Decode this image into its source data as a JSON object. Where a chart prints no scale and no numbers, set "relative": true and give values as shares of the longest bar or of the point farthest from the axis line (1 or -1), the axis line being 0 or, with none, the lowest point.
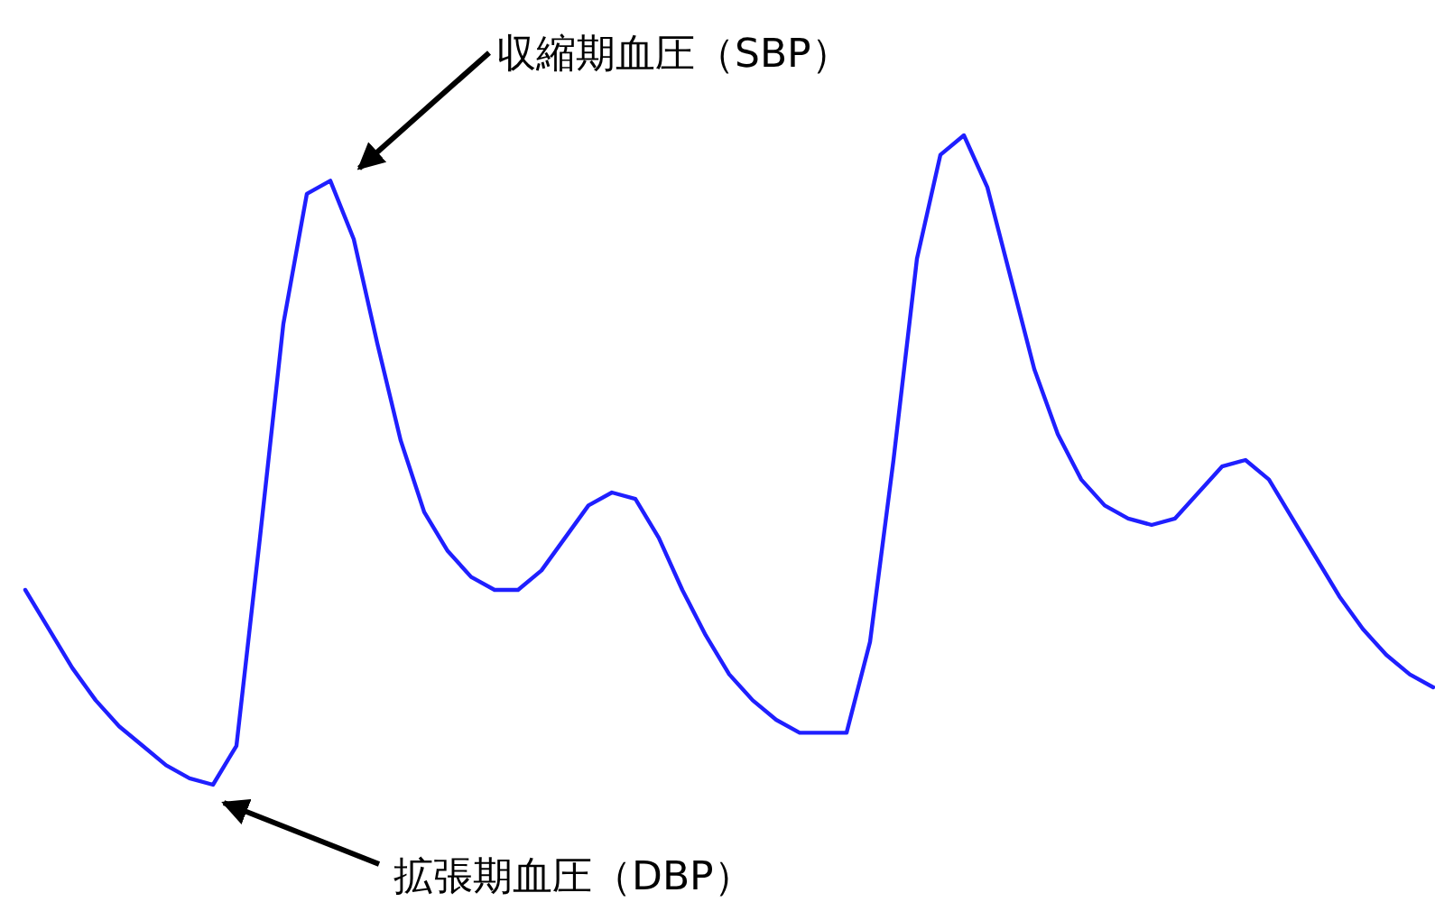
{
  "chart_data": {
    "type": "line",
    "relative": true,
    "color": "#1f1fff",
    "marker": "none",
    "line_style": "solid",
    "grid": false,
    "categories": [
      null,
      null,
      null,
      null,
      null,
      null,
      null,
      null,
      null,
      null,
      null,
      null,
      null,
      null,
      null,
      null,
      null,
      null,
      null,
      null,
      null,
      null,
      null,
      null,
      null,
      null,
      null,
      null,
      null,
      null,
      null,
      null,
      null,
      null,
      null,
      null,
      null,
      null,
      null,
      null,
      null,
      null,
      null,
      null,
      null,
      null,
      null,
      null,
      null,
      null,
      null,
      null,
      null,
      null,
      null,
      null,
      null,
      null,
      null,
      null,
      null
    ],
    "values": [
      0.3,
      0.24,
      0.18,
      0.13,
      0.09,
      0.06,
      0.03,
      0.01,
      0,
      0.06,
      0.38,
      0.71,
      0.91,
      0.93,
      0.84,
      0.68,
      0.53,
      0.42,
      0.36,
      0.32,
      0.3,
      0.3,
      0.33,
      0.38,
      0.43,
      0.45,
      0.44,
      0.38,
      0.3,
      0.23,
      0.17,
      0.13,
      0.1,
      0.08,
      0.08,
      0.08,
      0.22,
      0.5,
      0.81,
      0.97,
      1,
      0.92,
      0.78,
      0.64,
      0.54,
      0.47,
      0.43,
      0.41,
      0.4,
      0.41,
      0.45,
      0.49,
      0.5,
      0.47,
      0.41,
      0.35,
      0.29,
      0.24,
      0.2,
      0.17,
      0.15
    ],
    "annotations": [
      "収縮期血圧（SBP）",
      "拡張期血圧（DBP）"
    ]
  }
}
